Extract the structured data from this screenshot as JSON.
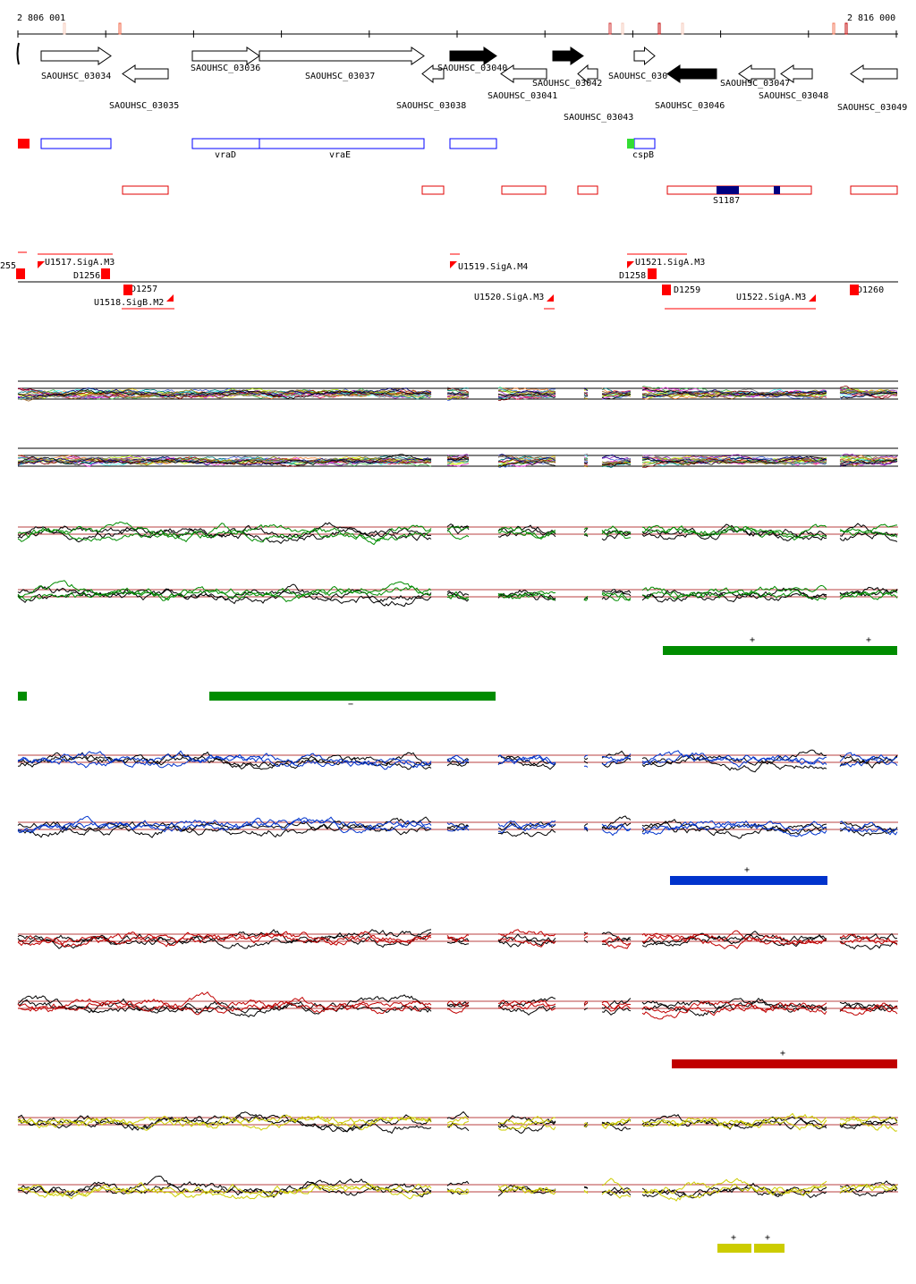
{
  "axis": {
    "start_label": "2 806 001",
    "end_label": "2 816 000"
  },
  "genes": [
    {
      "name": "SAOUHSC_03034",
      "strand": "+",
      "filled": false
    },
    {
      "name": "SAOUHSC_03035",
      "strand": "-",
      "filled": false
    },
    {
      "name": "SAOUHSC_03036",
      "strand": "+",
      "filled": false
    },
    {
      "name": "SAOUHSC_03037",
      "strand": "+",
      "filled": false
    },
    {
      "name": "SAOUHSC_03038",
      "strand": "-",
      "filled": false
    },
    {
      "name": "SAOUHSC_03040",
      "strand": "+",
      "filled": true
    },
    {
      "name": "SAOUHSC_03041",
      "strand": "-",
      "filled": false
    },
    {
      "name": "SAOUHSC_03042",
      "strand": "+",
      "filled": true
    },
    {
      "name": "SAOUHSC_03043",
      "strand": "-",
      "filled": false
    },
    {
      "name": "SAOUHSC_030",
      "strand": "+",
      "filled": false
    },
    {
      "name": "SAOUHSC_03046",
      "strand": "-",
      "filled": true
    },
    {
      "name": "SAOUHSC_03047",
      "strand": "-",
      "filled": false
    },
    {
      "name": "SAOUHSC_03048",
      "strand": "-",
      "filled": false
    },
    {
      "name": "SAOUHSC_03049",
      "strand": "-",
      "filled": false
    }
  ],
  "annotations": [
    "vraD",
    "vraE",
    "cspB"
  ],
  "regions": [
    "S1187"
  ],
  "promoters": [
    "255",
    "U1517.SigA.M3",
    "D1256",
    "D1257",
    "U1518.SigB.M2",
    "U1519.SigA.M4",
    "U1520.SigA.M3",
    "U1521.SigA.M3",
    "D1258",
    "D1259",
    "U1522.SigA.M3",
    "D1260"
  ],
  "colors": {
    "green": "#008c00",
    "blue": "#0033cc",
    "red": "#c00000",
    "yellow": "#cccc00",
    "ref": "#a00000"
  },
  "condition_bars": [
    {
      "color": "green",
      "sign": "+"
    },
    {
      "color": "green",
      "sign": "−"
    },
    {
      "color": "blue",
      "sign": "+"
    },
    {
      "color": "red",
      "sign": "+"
    },
    {
      "color": "yellow",
      "sign": "+"
    }
  ]
}
